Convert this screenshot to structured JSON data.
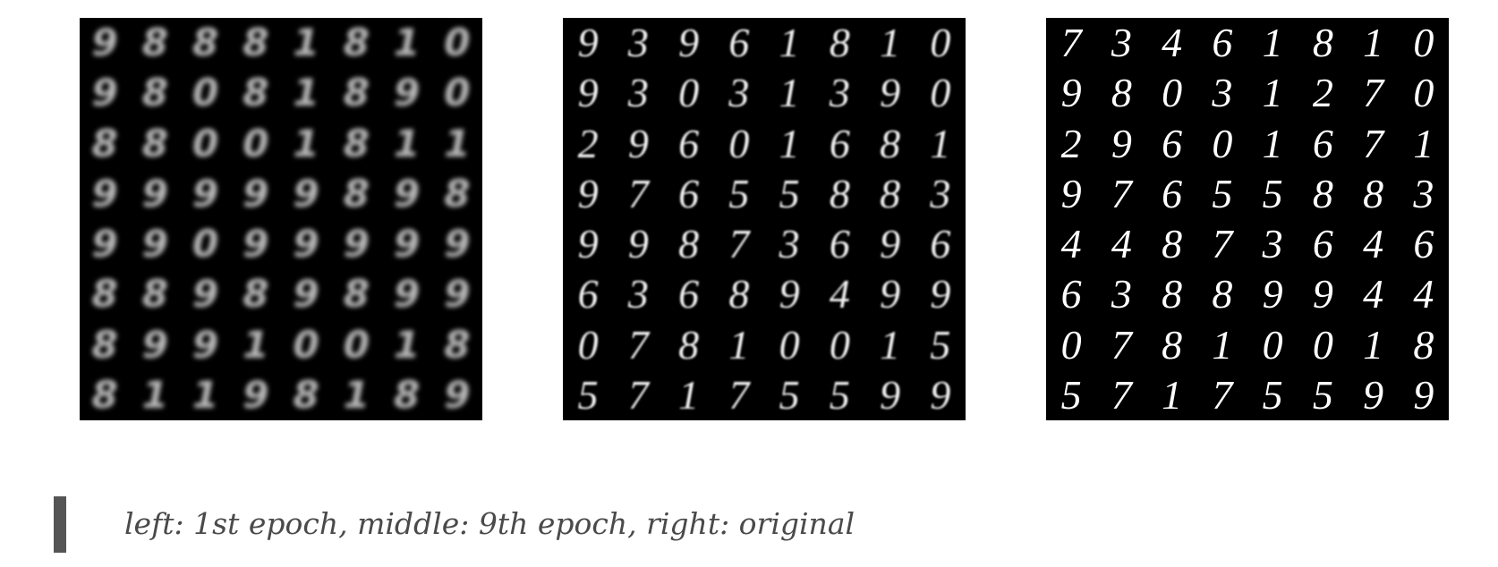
{
  "panels": [
    {
      "name": "1st epoch",
      "rows": [
        [
          "9",
          "8",
          "8",
          "8",
          "1",
          "8",
          "1",
          "0"
        ],
        [
          "9",
          "8",
          "0",
          "8",
          "1",
          "8",
          "9",
          "0"
        ],
        [
          "8",
          "8",
          "0",
          "0",
          "1",
          "8",
          "1",
          "1"
        ],
        [
          "9",
          "9",
          "9",
          "9",
          "9",
          "8",
          "9",
          "8"
        ],
        [
          "9",
          "9",
          "0",
          "9",
          "9",
          "9",
          "9",
          "9"
        ],
        [
          "8",
          "8",
          "9",
          "8",
          "9",
          "8",
          "9",
          "9"
        ],
        [
          "8",
          "9",
          "9",
          "1",
          "0",
          "0",
          "1",
          "8"
        ],
        [
          "8",
          "1",
          "1",
          "9",
          "8",
          "1",
          "8",
          "9"
        ]
      ]
    },
    {
      "name": "9th epoch",
      "rows": [
        [
          "9",
          "3",
          "9",
          "6",
          "1",
          "8",
          "1",
          "0"
        ],
        [
          "9",
          "3",
          "0",
          "3",
          "1",
          "3",
          "9",
          "0"
        ],
        [
          "2",
          "9",
          "6",
          "0",
          "1",
          "6",
          "8",
          "1"
        ],
        [
          "9",
          "7",
          "6",
          "5",
          "5",
          "8",
          "8",
          "3"
        ],
        [
          "9",
          "9",
          "8",
          "7",
          "3",
          "6",
          "9",
          "6"
        ],
        [
          "6",
          "3",
          "6",
          "8",
          "9",
          "4",
          "9",
          "9"
        ],
        [
          "0",
          "7",
          "8",
          "1",
          "0",
          "0",
          "1",
          "5"
        ],
        [
          "5",
          "7",
          "1",
          "7",
          "5",
          "5",
          "9",
          "9"
        ]
      ]
    },
    {
      "name": "original",
      "rows": [
        [
          "7",
          "3",
          "4",
          "6",
          "1",
          "8",
          "1",
          "0"
        ],
        [
          "9",
          "8",
          "0",
          "3",
          "1",
          "2",
          "7",
          "0"
        ],
        [
          "2",
          "9",
          "6",
          "0",
          "1",
          "6",
          "7",
          "1"
        ],
        [
          "9",
          "7",
          "6",
          "5",
          "5",
          "8",
          "8",
          "3"
        ],
        [
          "4",
          "4",
          "8",
          "7",
          "3",
          "6",
          "4",
          "6"
        ],
        [
          "6",
          "3",
          "8",
          "8",
          "9",
          "9",
          "4",
          "4"
        ],
        [
          "0",
          "7",
          "8",
          "1",
          "0",
          "0",
          "1",
          "8"
        ],
        [
          "5",
          "7",
          "1",
          "7",
          "5",
          "5",
          "9",
          "9"
        ]
      ]
    }
  ],
  "caption": "left: 1st epoch, middle: 9th epoch, right: original"
}
